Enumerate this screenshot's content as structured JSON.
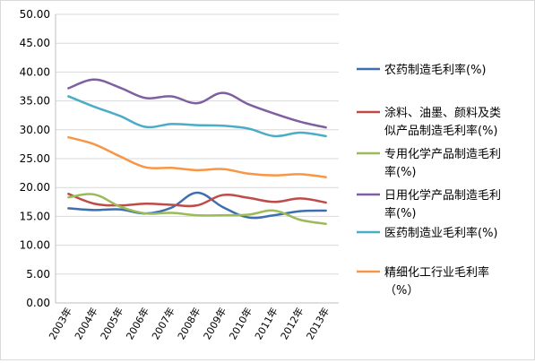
{
  "chart_data": {
    "type": "line",
    "categories": [
      "2003年",
      "2004年",
      "2005年",
      "2006年",
      "2007年",
      "2008年",
      "2009年",
      "2010年",
      "2011年",
      "2012年",
      "2013年"
    ],
    "ylim": [
      0,
      50
    ],
    "yticks": [
      "0.00",
      "5.00",
      "10.00",
      "15.00",
      "20.00",
      "25.00",
      "30.00",
      "35.00",
      "40.00",
      "45.00",
      "50.00"
    ],
    "grid": "horizontal",
    "legend_position": "right",
    "series": [
      {
        "name": "农药制造毛利率(%)",
        "name_lines": [
          "农药制造毛利率(%)"
        ],
        "color": "#3d6fae",
        "values": [
          16.4,
          16.1,
          16.2,
          15.5,
          16.5,
          19.1,
          16.6,
          14.8,
          15.2,
          15.9,
          16.0
        ]
      },
      {
        "name": "涂料、油墨、颜料及类似产品制造毛利率(%)",
        "name_lines": [
          "涂料、油墨、颜料及类",
          "似产品制造毛利率(%)"
        ],
        "color": "#be4b48",
        "values": [
          18.9,
          17.2,
          16.9,
          17.2,
          17.0,
          16.9,
          18.7,
          18.2,
          17.5,
          18.1,
          17.4
        ]
      },
      {
        "name": "专用化学产品制造毛利率(%)",
        "name_lines": [
          "专用化学产品制造毛利",
          "率(%)"
        ],
        "color": "#9bbb59",
        "values": [
          18.3,
          18.8,
          16.7,
          15.5,
          15.6,
          15.2,
          15.2,
          15.3,
          16.0,
          14.4,
          13.7
        ]
      },
      {
        "name": "日用化学产品制造毛利率(%)",
        "name_lines": [
          "日用化学产品制造毛利",
          "率(%)"
        ],
        "color": "#7e60a2",
        "values": [
          37.2,
          38.7,
          37.3,
          35.5,
          35.8,
          34.6,
          36.4,
          34.4,
          32.8,
          31.4,
          30.4
        ]
      },
      {
        "name": "医药制造业毛利率(%)",
        "name_lines": [
          "医药制造业毛利率(%)"
        ],
        "color": "#4aacc6",
        "values": [
          35.8,
          34.0,
          32.4,
          30.5,
          31.0,
          30.8,
          30.7,
          30.2,
          28.9,
          29.5,
          28.9
        ]
      },
      {
        "name": "精细化工行业毛利率（%）",
        "name_lines": [
          "精细化工行业毛利率",
          "（%）"
        ],
        "color": "#f79646",
        "values": [
          28.7,
          27.5,
          25.4,
          23.5,
          23.4,
          23.0,
          23.2,
          22.4,
          22.1,
          22.3,
          21.8
        ]
      }
    ]
  }
}
